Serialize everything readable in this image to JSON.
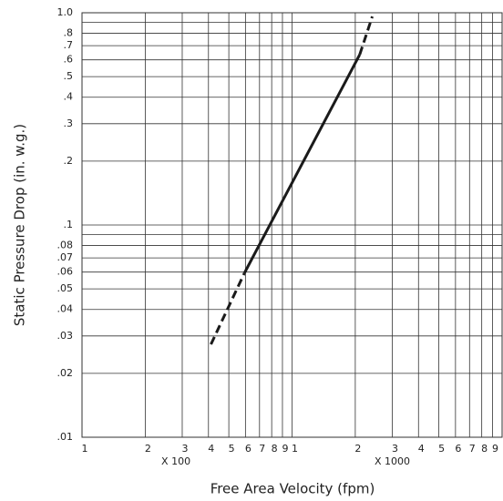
{
  "chart_data": {
    "type": "line",
    "x_label": "Free Area Velocity (fpm)",
    "y_label": "Static Pressure Drop (in. w.g.)",
    "log_x": true,
    "log_y": true,
    "grid": true,
    "xlim": [
      100,
      10000
    ],
    "ylim": [
      0.01,
      1
    ],
    "xticks": [
      {
        "value": 100,
        "label": "1"
      },
      {
        "value": 200,
        "label": "2"
      },
      {
        "value": 300,
        "label": "3"
      },
      {
        "value": 400,
        "label": "4"
      },
      {
        "value": 500,
        "label": "5"
      },
      {
        "value": 600,
        "label": "6"
      },
      {
        "value": 700,
        "label": "7"
      },
      {
        "value": 800,
        "label": "8"
      },
      {
        "value": 900,
        "label": "9"
      },
      {
        "value": 1000,
        "label": "1"
      },
      {
        "value": 2000,
        "label": "2"
      },
      {
        "value": 3000,
        "label": "3"
      },
      {
        "value": 4000,
        "label": "4"
      },
      {
        "value": 5000,
        "label": "5"
      },
      {
        "value": 6000,
        "label": "6"
      },
      {
        "value": 7000,
        "label": "7"
      },
      {
        "value": 8000,
        "label": "8"
      },
      {
        "value": 9000,
        "label": "9"
      }
    ],
    "yticks": [
      {
        "value": 0.01,
        "label": ".01"
      },
      {
        "value": 0.02,
        "label": ".02"
      },
      {
        "value": 0.03,
        "label": ".03"
      },
      {
        "value": 0.04,
        "label": ".04"
      },
      {
        "value": 0.05,
        "label": ".05"
      },
      {
        "value": 0.06,
        "label": ".06"
      },
      {
        "value": 0.07,
        "label": ".07"
      },
      {
        "value": 0.08,
        "label": ".08"
      },
      {
        "value": 0.09,
        "label": null
      },
      {
        "value": 0.1,
        "label": ".1"
      },
      {
        "value": 0.2,
        "label": ".2"
      },
      {
        "value": 0.3,
        "label": ".3"
      },
      {
        "value": 0.4,
        "label": ".4"
      },
      {
        "value": 0.5,
        "label": ".5"
      },
      {
        "value": 0.6,
        "label": ".6"
      },
      {
        "value": 0.7,
        "label": ".7"
      },
      {
        "value": 0.8,
        "label": ".8"
      },
      {
        "value": 0.9,
        "label": null
      },
      {
        "value": 1,
        "label": "1.0"
      }
    ],
    "annotations": [
      {
        "text": "X 100",
        "x": 280
      },
      {
        "text": "X 1000",
        "x": 3000
      }
    ],
    "series": [
      {
        "color": "#1a1a1a",
        "dashed": true,
        "x": [
          411,
          593
        ],
        "values": [
          0.0274,
          0.0593
        ]
      },
      {
        "color": "#1a1a1a",
        "dashed": false,
        "x": [
          593,
          2100
        ],
        "values": [
          0.0593,
          0.635
        ]
      },
      {
        "color": "#1a1a1a",
        "dashed": true,
        "x": [
          2100,
          2410
        ],
        "values": [
          0.635,
          0.96
        ]
      }
    ]
  }
}
